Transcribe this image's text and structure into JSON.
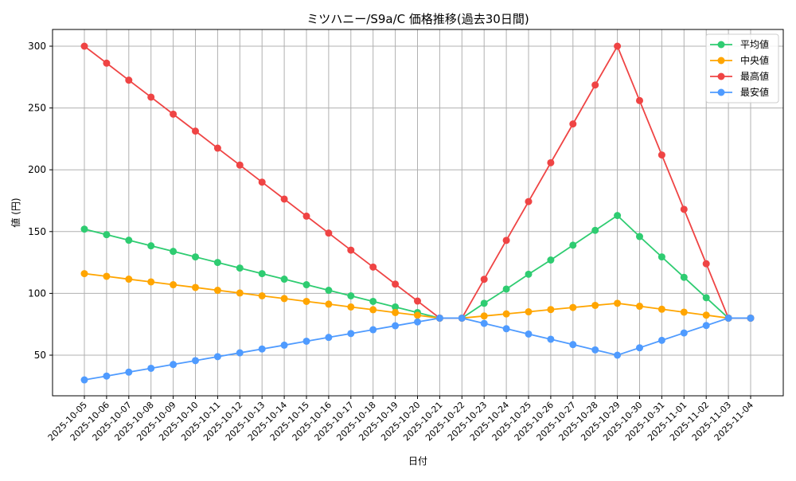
{
  "chart_data": {
    "type": "line",
    "title": "ミツハニー/S9a/C 価格推移(過去30日間)",
    "xlabel": "日付",
    "ylabel": "値 (円)",
    "ylim": [
      15,
      313
    ],
    "yticks": [
      50,
      100,
      150,
      200,
      250,
      300
    ],
    "grid": true,
    "legend_position": "upper right",
    "categories": [
      "2025-10-05",
      "2025-10-06",
      "2025-10-07",
      "2025-10-08",
      "2025-10-09",
      "2025-10-10",
      "2025-10-11",
      "2025-10-12",
      "2025-10-13",
      "2025-10-14",
      "2025-10-15",
      "2025-10-16",
      "2025-10-17",
      "2025-10-18",
      "2025-10-19",
      "2025-10-20",
      "2025-10-21",
      "2025-10-22",
      "2025-10-23",
      "2025-10-24",
      "2025-10-25",
      "2025-10-26",
      "2025-10-27",
      "2025-10-28",
      "2025-10-29",
      "2025-10-30",
      "2025-10-31",
      "2025-11-01",
      "2025-11-02",
      "2025-11-03",
      "2025-11-04"
    ],
    "series": [
      {
        "name": "平均値",
        "color": "#2ecc71",
        "values": [
          152,
          147.5,
          143,
          138.5,
          134,
          129.5,
          125,
          120.5,
          116,
          111.5,
          107,
          102.5,
          98,
          93.5,
          89,
          84.5,
          80,
          80,
          92,
          103.5,
          115.5,
          127,
          139,
          151,
          163,
          146,
          129.5,
          113,
          96.5,
          80,
          80
        ]
      },
      {
        "name": "中央値",
        "color": "#ffa500",
        "values": [
          116,
          113.8,
          111.5,
          109.3,
          107,
          104.8,
          102.5,
          100.3,
          98,
          95.8,
          93.5,
          91.3,
          89,
          86.8,
          84.5,
          82.3,
          80,
          80,
          81.7,
          83.4,
          85.1,
          86.9,
          88.6,
          90.3,
          92,
          89.6,
          87.2,
          84.8,
          82.4,
          80,
          80
        ]
      },
      {
        "name": "最高値",
        "color": "#ef4444",
        "values": [
          300,
          286.3,
          272.5,
          258.8,
          245,
          231.3,
          217.5,
          203.8,
          190,
          176.3,
          162.5,
          148.8,
          135,
          121.3,
          107.5,
          93.8,
          80,
          80,
          111.4,
          142.9,
          174.3,
          205.7,
          237.1,
          268.6,
          300,
          256,
          212,
          168,
          124,
          80,
          80
        ]
      },
      {
        "name": "最安値",
        "color": "#4f9bff",
        "values": [
          30,
          33.1,
          36.3,
          39.4,
          42.5,
          45.6,
          48.8,
          51.9,
          55,
          58.1,
          61.3,
          64.4,
          67.5,
          70.6,
          73.8,
          76.9,
          80,
          80,
          75.7,
          71.4,
          67.1,
          62.9,
          58.6,
          54.3,
          50,
          56,
          62,
          68,
          74,
          80,
          80
        ]
      }
    ]
  }
}
